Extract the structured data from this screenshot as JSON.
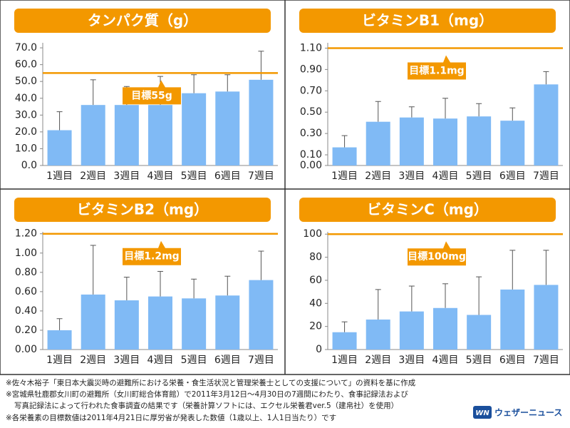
{
  "chart_data": [
    {
      "type": "bar",
      "title": "タンパク質（g）",
      "categories": [
        "1週目",
        "2週目",
        "3週目",
        "4週目",
        "5週目",
        "6週目",
        "7週目"
      ],
      "values": [
        21,
        36,
        36,
        36,
        43,
        44,
        51
      ],
      "errors": [
        11,
        15,
        11,
        17,
        11,
        10,
        17
      ],
      "color": "#80baf5",
      "ylim": [
        0,
        73
      ],
      "yticks": [
        {
          "value": 0,
          "label": "0.0"
        },
        {
          "value": 10,
          "label": "10.0"
        },
        {
          "value": 20,
          "label": "20.0"
        },
        {
          "value": 30,
          "label": "30.0"
        },
        {
          "value": 40,
          "label": "40.0"
        },
        {
          "value": 50,
          "label": "50.0"
        },
        {
          "value": 60,
          "label": "60.0"
        },
        {
          "value": 70,
          "label": "70.0"
        }
      ],
      "target": 55,
      "target_label": "目標55g",
      "target_color": "#f39800"
    },
    {
      "type": "bar",
      "title": "ビタミンB1（mg）",
      "categories": [
        "1週目",
        "2週目",
        "3週目",
        "4週目",
        "5週目",
        "6週目",
        "7週目"
      ],
      "values": [
        0.17,
        0.41,
        0.45,
        0.44,
        0.46,
        0.42,
        0.76
      ],
      "errors": [
        0.11,
        0.19,
        0.1,
        0.19,
        0.12,
        0.12,
        0.12
      ],
      "color": "#80baf5",
      "ylim": [
        0,
        1.15
      ],
      "yticks": [
        {
          "value": 0,
          "label": "0.00"
        },
        {
          "value": 0.1,
          "label": "0.10"
        },
        {
          "value": 0.3,
          "label": "0.30"
        },
        {
          "value": 0.5,
          "label": "0.50"
        },
        {
          "value": 0.7,
          "label": "0.70"
        },
        {
          "value": 0.9,
          "label": "0.90"
        },
        {
          "value": 1.1,
          "label": "1.10"
        }
      ],
      "target": 1.1,
      "target_label": "目標1.1mg",
      "target_color": "#f39800"
    },
    {
      "type": "bar",
      "title": "ビタミンB2（mg）",
      "categories": [
        "1週目",
        "2週目",
        "3週目",
        "4週目",
        "5週目",
        "6週目",
        "7週目"
      ],
      "values": [
        0.2,
        0.57,
        0.51,
        0.55,
        0.53,
        0.56,
        0.72
      ],
      "errors": [
        0.12,
        0.51,
        0.24,
        0.26,
        0.2,
        0.2,
        0.3
      ],
      "color": "#80baf5",
      "ylim": [
        0,
        1.22
      ],
      "yticks": [
        {
          "value": 0,
          "label": "0.00"
        },
        {
          "value": 0.2,
          "label": "0.20"
        },
        {
          "value": 0.4,
          "label": "0.40"
        },
        {
          "value": 0.6,
          "label": "0.60"
        },
        {
          "value": 0.8,
          "label": "0.80"
        },
        {
          "value": 1,
          "label": "1.00"
        },
        {
          "value": 1.2,
          "label": "1.20"
        }
      ],
      "target": 1.2,
      "target_label": "目標1.2mg",
      "target_color": "#f39800"
    },
    {
      "type": "bar",
      "title": "ビタミンC（mg）",
      "categories": [
        "1週目",
        "2週目",
        "3週目",
        "4週目",
        "5週目",
        "6週目",
        "7週目"
      ],
      "values": [
        15,
        26,
        33,
        36,
        30,
        52,
        56
      ],
      "errors": [
        9,
        26,
        22,
        21,
        33,
        34,
        30
      ],
      "color": "#80baf5",
      "ylim": [
        0,
        102
      ],
      "yticks": [
        0,
        20,
        40,
        60,
        80,
        100
      ],
      "target": 100,
      "target_label": "目標100mg",
      "target_color": "#f39800"
    }
  ],
  "notes": [
    "※佐々木裕子「東日本大震災時の避難所における栄養・食生活状況と管理栄養士としての支援について」の資料を基に作成",
    "※宮城県牡鹿郡女川町の避難所（女川町総合体育館）で2011年3月12日～4月30日の7週間にわたり、食事記録法および",
    "写真記録法によって行われた食事調査の結果です（栄養計算ソフトには、エクセル栄養君ver.5（建帛社）を使用）",
    "※各栄養素の目標数値は2011年4月21日に厚労省が発表した数値（1歳以上、1人1日当たり）です"
  ],
  "brand_mark": "WN",
  "brand": "ウェザーニュース"
}
